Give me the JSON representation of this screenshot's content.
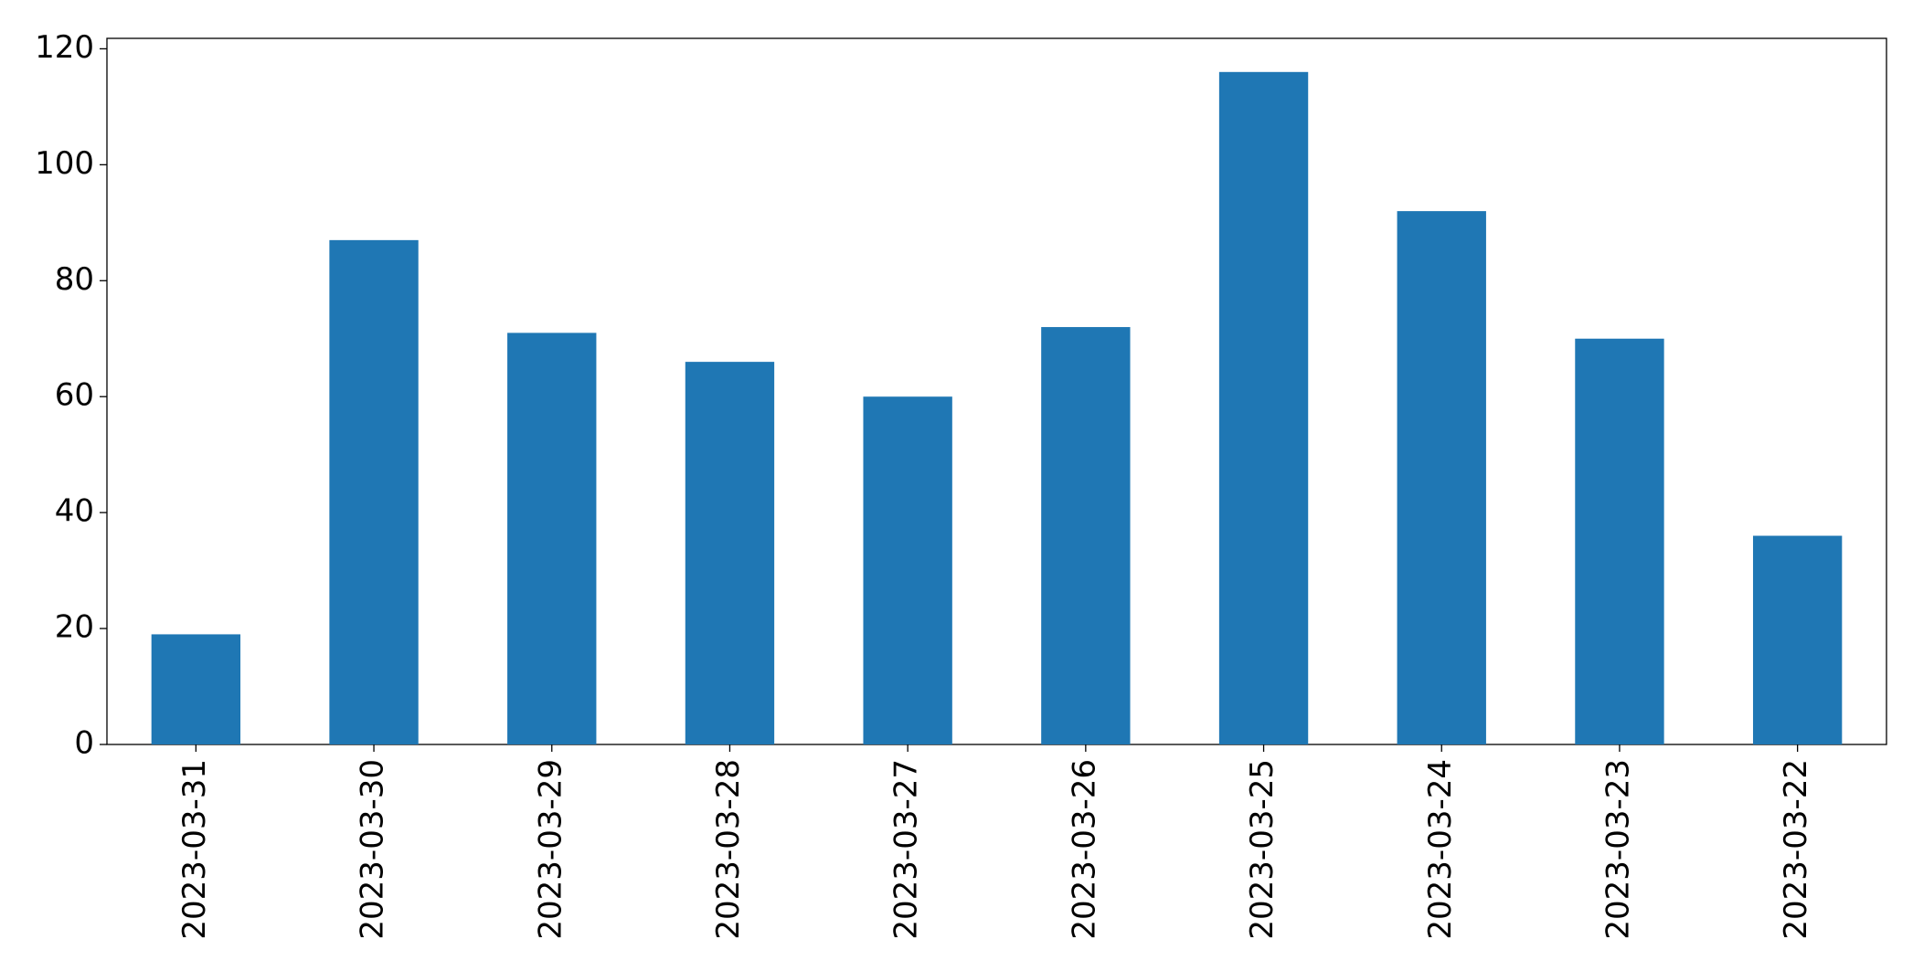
{
  "chart_data": {
    "type": "bar",
    "categories": [
      "2023-03-31",
      "2023-03-30",
      "2023-03-29",
      "2023-03-28",
      "2023-03-27",
      "2023-03-26",
      "2023-03-25",
      "2023-03-24",
      "2023-03-23",
      "2023-03-22"
    ],
    "values": [
      19,
      87,
      71,
      66,
      60,
      72,
      116,
      92,
      70,
      36
    ],
    "color": "#1f77b4",
    "ylim": [
      0,
      121.8
    ],
    "yticks": [
      0,
      20,
      40,
      60,
      80,
      100,
      120
    ],
    "grid": false
  }
}
